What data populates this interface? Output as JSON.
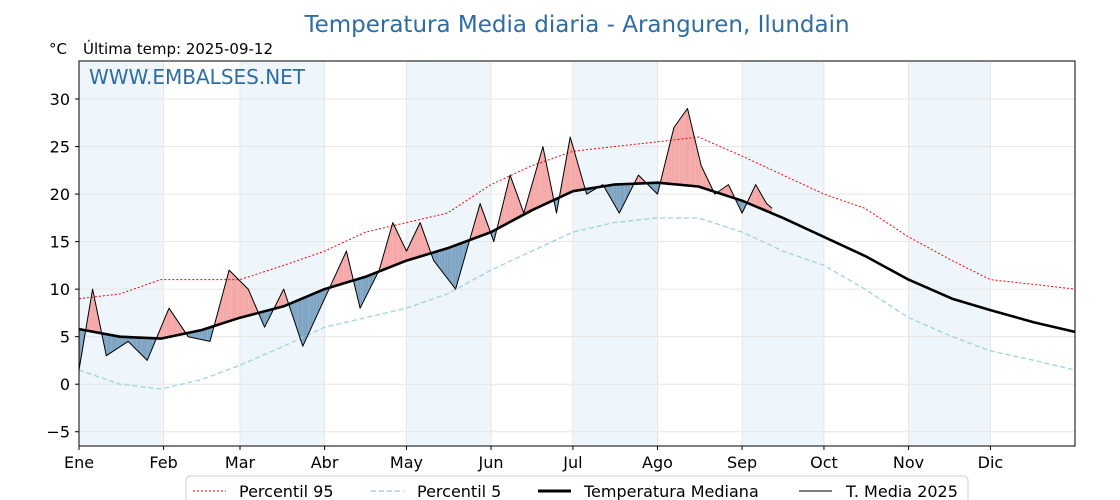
{
  "chart_data": {
    "type": "line",
    "title": "Temperatura Media diaria - Aranguren, Ilundain",
    "unit_label": "°C",
    "last_temp": "Última temp: 2025-09-12",
    "watermark": "WWW.EMBALSES.NET",
    "xlim": [
      0,
      365
    ],
    "ylim": [
      -6.5,
      34
    ],
    "y_ticks": [
      -5,
      0,
      5,
      10,
      15,
      20,
      25,
      30
    ],
    "x_ticks": [
      {
        "label": "Ene",
        "day": 0
      },
      {
        "label": "Feb",
        "day": 31
      },
      {
        "label": "Mar",
        "day": 59
      },
      {
        "label": "Abr",
        "day": 90
      },
      {
        "label": "May",
        "day": 120
      },
      {
        "label": "Jun",
        "day": 151
      },
      {
        "label": "Jul",
        "day": 181
      },
      {
        "label": "Ago",
        "day": 212
      },
      {
        "label": "Sep",
        "day": 243
      },
      {
        "label": "Oct",
        "day": 273
      },
      {
        "label": "Nov",
        "day": 304
      },
      {
        "label": "Dic",
        "day": 334
      }
    ],
    "grid": true,
    "legend_position": "bottom-center",
    "colors": {
      "p95": "#ff0000",
      "p5": "#9fd2e3",
      "median": "#000000",
      "current": "#000000",
      "above_fill": "#f4a9a8",
      "below_fill": "#7fa5c4",
      "shade": "#eef5fb"
    },
    "series": [
      {
        "name": "Percentil 95",
        "style": "dotted",
        "points": [
          [
            0,
            9
          ],
          [
            15,
            9.5
          ],
          [
            30,
            11
          ],
          [
            45,
            11
          ],
          [
            59,
            11
          ],
          [
            75,
            12.5
          ],
          [
            90,
            14
          ],
          [
            105,
            16
          ],
          [
            120,
            17
          ],
          [
            135,
            18
          ],
          [
            151,
            21
          ],
          [
            166,
            23
          ],
          [
            181,
            24.5
          ],
          [
            196,
            25
          ],
          [
            212,
            25.5
          ],
          [
            227,
            26
          ],
          [
            243,
            24
          ],
          [
            258,
            22
          ],
          [
            273,
            20
          ],
          [
            288,
            18.5
          ],
          [
            304,
            15.5
          ],
          [
            320,
            13
          ],
          [
            334,
            11
          ],
          [
            350,
            10.5
          ],
          [
            365,
            10
          ]
        ]
      },
      {
        "name": "Percentil 5",
        "style": "dashed",
        "points": [
          [
            0,
            1.5
          ],
          [
            15,
            0
          ],
          [
            30,
            -0.5
          ],
          [
            45,
            0.5
          ],
          [
            59,
            2
          ],
          [
            75,
            4
          ],
          [
            90,
            6
          ],
          [
            105,
            7
          ],
          [
            120,
            8
          ],
          [
            135,
            9.5
          ],
          [
            151,
            12
          ],
          [
            166,
            14
          ],
          [
            181,
            16
          ],
          [
            196,
            17
          ],
          [
            212,
            17.5
          ],
          [
            227,
            17.5
          ],
          [
            243,
            16
          ],
          [
            258,
            14
          ],
          [
            273,
            12.5
          ],
          [
            288,
            10
          ],
          [
            304,
            7
          ],
          [
            320,
            5
          ],
          [
            334,
            3.5
          ],
          [
            350,
            2.5
          ],
          [
            365,
            1.5
          ]
        ]
      },
      {
        "name": "Temperatura Mediana",
        "style": "bold",
        "points": [
          [
            0,
            5.8
          ],
          [
            15,
            5
          ],
          [
            30,
            4.8
          ],
          [
            45,
            5.7
          ],
          [
            59,
            7
          ],
          [
            75,
            8.2
          ],
          [
            90,
            10
          ],
          [
            105,
            11.3
          ],
          [
            120,
            13
          ],
          [
            135,
            14.3
          ],
          [
            151,
            16
          ],
          [
            166,
            18.3
          ],
          [
            181,
            20.3
          ],
          [
            196,
            21
          ],
          [
            212,
            21.2
          ],
          [
            227,
            20.8
          ],
          [
            243,
            19.3
          ],
          [
            258,
            17.5
          ],
          [
            273,
            15.5
          ],
          [
            288,
            13.5
          ],
          [
            304,
            11
          ],
          [
            320,
            9
          ],
          [
            334,
            7.8
          ],
          [
            350,
            6.5
          ],
          [
            365,
            5.5
          ]
        ]
      },
      {
        "name": "T. Media 2025",
        "style": "solid",
        "points": [
          [
            0,
            1.5
          ],
          [
            5,
            10
          ],
          [
            10,
            3
          ],
          [
            18,
            4.5
          ],
          [
            25,
            2.5
          ],
          [
            33,
            8
          ],
          [
            40,
            5
          ],
          [
            48,
            4.5
          ],
          [
            55,
            12
          ],
          [
            62,
            10
          ],
          [
            68,
            6
          ],
          [
            75,
            10
          ],
          [
            82,
            4
          ],
          [
            90,
            9
          ],
          [
            98,
            14
          ],
          [
            103,
            8
          ],
          [
            110,
            12
          ],
          [
            115,
            17
          ],
          [
            120,
            14
          ],
          [
            125,
            17
          ],
          [
            130,
            13
          ],
          [
            138,
            10
          ],
          [
            142,
            14
          ],
          [
            147,
            19
          ],
          [
            152,
            15
          ],
          [
            158,
            22
          ],
          [
            163,
            18
          ],
          [
            170,
            25
          ],
          [
            175,
            18
          ],
          [
            180,
            26
          ],
          [
            186,
            20
          ],
          [
            192,
            21
          ],
          [
            198,
            18
          ],
          [
            205,
            22
          ],
          [
            212,
            20
          ],
          [
            218,
            27
          ],
          [
            223,
            29
          ],
          [
            228,
            23
          ],
          [
            233,
            20
          ],
          [
            238,
            21
          ],
          [
            243,
            18
          ],
          [
            248,
            21
          ],
          [
            252,
            19
          ],
          [
            254,
            18.5
          ]
        ]
      }
    ]
  }
}
